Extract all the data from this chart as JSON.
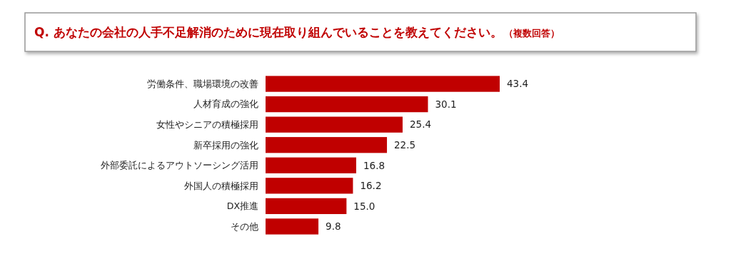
{
  "chart_data": {
    "type": "bar",
    "orientation": "horizontal",
    "title": "Q. あなたの会社の人手不足解消のために現在取り組んでいることを教えてください。",
    "subtitle": "（複数回答）",
    "categories": [
      "労働条件、職場環境の改善",
      "人材育成の強化",
      "女性やシニアの積極採用",
      "新卒採用の強化",
      "外部委託によるアウトソーシング活用",
      "外国人の積極採用",
      "DX推進",
      "その他"
    ],
    "values": [
      43.4,
      30.1,
      25.4,
      22.5,
      16.8,
      16.2,
      15.0,
      9.8
    ],
    "value_labels": [
      "43.4",
      "30.1",
      "25.4",
      "22.5",
      "16.8",
      "16.2",
      "15.0",
      "9.8"
    ],
    "color": "#c00000"
  }
}
